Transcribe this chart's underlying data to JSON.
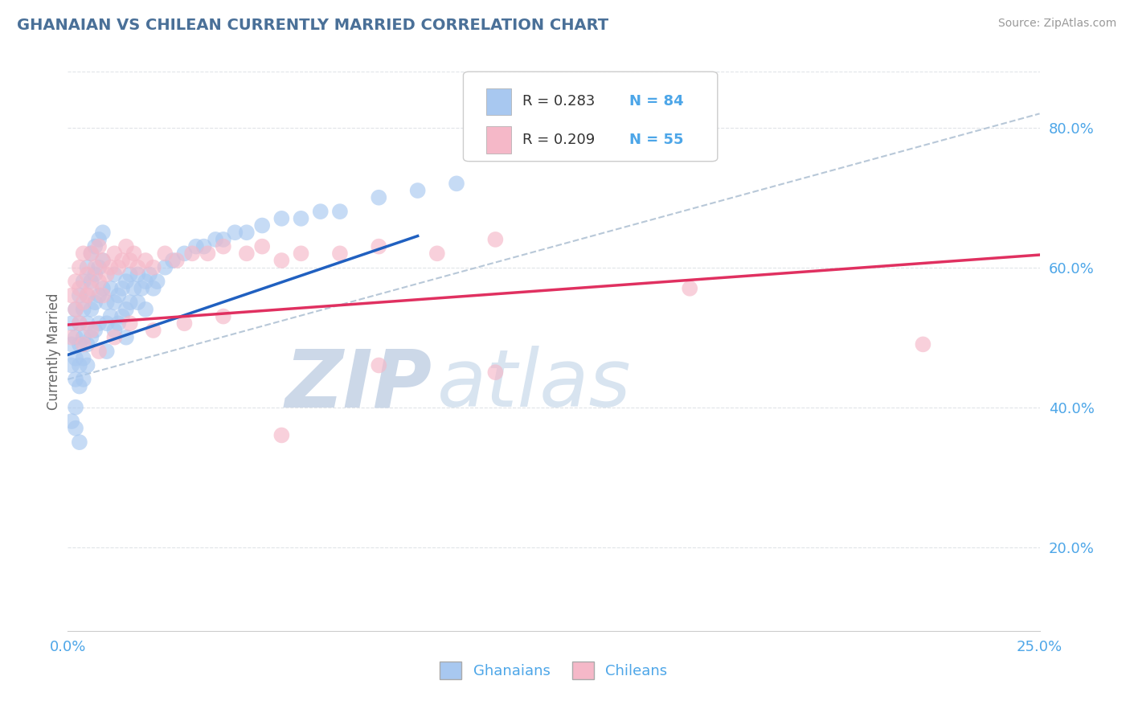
{
  "title": "GHANAIAN VS CHILEAN CURRENTLY MARRIED CORRELATION CHART",
  "source_text": "Source: ZipAtlas.com",
  "ylabel": "Currently Married",
  "xlim": [
    0.0,
    0.25
  ],
  "ylim": [
    0.08,
    0.88
  ],
  "yticks": [
    0.2,
    0.4,
    0.6,
    0.8
  ],
  "ytick_labels": [
    "20.0%",
    "40.0%",
    "60.0%",
    "80.0%"
  ],
  "xticks": [
    0.0,
    0.25
  ],
  "xtick_labels": [
    "0.0%",
    "25.0%"
  ],
  "legend_r1": "R = 0.283",
  "legend_n1": "N = 84",
  "legend_r2": "R = 0.209",
  "legend_n2": "N = 55",
  "blue_color": "#a8c8f0",
  "pink_color": "#f5b8c8",
  "blue_line_color": "#2060c0",
  "pink_line_color": "#e03060",
  "gray_dash_color": "#b8c8d8",
  "title_color": "#4a7098",
  "source_color": "#999999",
  "tick_color": "#4da6e8",
  "watermark_zip_color": "#ccd8e8",
  "watermark_atlas_color": "#d8e4f0",
  "background_color": "#ffffff",
  "grid_color": "#e0e4e8",
  "ghanaian_x": [
    0.001,
    0.001,
    0.001,
    0.002,
    0.002,
    0.002,
    0.002,
    0.003,
    0.003,
    0.003,
    0.003,
    0.003,
    0.004,
    0.004,
    0.004,
    0.004,
    0.004,
    0.005,
    0.005,
    0.005,
    0.005,
    0.005,
    0.006,
    0.006,
    0.006,
    0.006,
    0.007,
    0.007,
    0.007,
    0.007,
    0.008,
    0.008,
    0.008,
    0.008,
    0.009,
    0.009,
    0.009,
    0.01,
    0.01,
    0.01,
    0.011,
    0.011,
    0.012,
    0.012,
    0.012,
    0.013,
    0.013,
    0.014,
    0.014,
    0.015,
    0.015,
    0.015,
    0.016,
    0.016,
    0.017,
    0.018,
    0.018,
    0.019,
    0.02,
    0.02,
    0.021,
    0.022,
    0.023,
    0.025,
    0.027,
    0.03,
    0.033,
    0.035,
    0.038,
    0.04,
    0.043,
    0.046,
    0.05,
    0.055,
    0.06,
    0.065,
    0.07,
    0.08,
    0.09,
    0.1,
    0.001,
    0.002,
    0.002,
    0.003
  ],
  "ghanaian_y": [
    0.52,
    0.49,
    0.46,
    0.54,
    0.5,
    0.47,
    0.44,
    0.56,
    0.52,
    0.49,
    0.46,
    0.43,
    0.58,
    0.54,
    0.5,
    0.47,
    0.44,
    0.6,
    0.56,
    0.52,
    0.49,
    0.46,
    0.62,
    0.58,
    0.54,
    0.5,
    0.63,
    0.59,
    0.55,
    0.51,
    0.64,
    0.6,
    0.56,
    0.52,
    0.65,
    0.61,
    0.57,
    0.55,
    0.52,
    0.48,
    0.57,
    0.53,
    0.59,
    0.55,
    0.51,
    0.56,
    0.52,
    0.57,
    0.53,
    0.58,
    0.54,
    0.5,
    0.59,
    0.55,
    0.57,
    0.59,
    0.55,
    0.57,
    0.58,
    0.54,
    0.59,
    0.57,
    0.58,
    0.6,
    0.61,
    0.62,
    0.63,
    0.63,
    0.64,
    0.64,
    0.65,
    0.65,
    0.66,
    0.67,
    0.67,
    0.68,
    0.68,
    0.7,
    0.71,
    0.72,
    0.38,
    0.37,
    0.4,
    0.35
  ],
  "chilean_x": [
    0.001,
    0.002,
    0.002,
    0.003,
    0.003,
    0.004,
    0.004,
    0.005,
    0.005,
    0.006,
    0.006,
    0.007,
    0.008,
    0.008,
    0.009,
    0.009,
    0.01,
    0.011,
    0.012,
    0.013,
    0.014,
    0.015,
    0.016,
    0.017,
    0.018,
    0.02,
    0.022,
    0.025,
    0.028,
    0.032,
    0.036,
    0.04,
    0.046,
    0.05,
    0.055,
    0.06,
    0.07,
    0.08,
    0.095,
    0.11,
    0.001,
    0.003,
    0.004,
    0.006,
    0.008,
    0.012,
    0.016,
    0.022,
    0.03,
    0.04,
    0.055,
    0.08,
    0.11,
    0.16,
    0.22
  ],
  "chilean_y": [
    0.56,
    0.54,
    0.58,
    0.57,
    0.6,
    0.55,
    0.62,
    0.56,
    0.59,
    0.57,
    0.62,
    0.6,
    0.58,
    0.63,
    0.56,
    0.61,
    0.59,
    0.6,
    0.62,
    0.6,
    0.61,
    0.63,
    0.61,
    0.62,
    0.6,
    0.61,
    0.6,
    0.62,
    0.61,
    0.62,
    0.62,
    0.63,
    0.62,
    0.63,
    0.61,
    0.62,
    0.62,
    0.63,
    0.62,
    0.64,
    0.5,
    0.52,
    0.49,
    0.51,
    0.48,
    0.5,
    0.52,
    0.51,
    0.52,
    0.53,
    0.36,
    0.46,
    0.45,
    0.57,
    0.49
  ],
  "blue_line_x": [
    0.0,
    0.09
  ],
  "blue_line_y": [
    0.475,
    0.645
  ],
  "pink_line_x": [
    0.0,
    0.25
  ],
  "pink_line_y": [
    0.518,
    0.618
  ],
  "gray_line_x": [
    0.0,
    0.25
  ],
  "gray_line_y": [
    0.44,
    0.82
  ]
}
